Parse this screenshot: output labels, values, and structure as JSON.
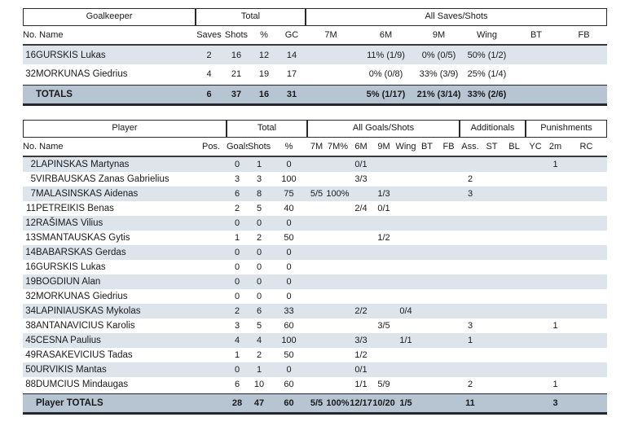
{
  "colors": {
    "stripe_row": "#dde4ec",
    "totals_row": "#b7c4d1",
    "border_dark": "#2a2a2a",
    "text": "#1a1a1a"
  },
  "goalkeeper_table": {
    "group_headers": [
      "Goalkeeper",
      "Total",
      "All Saves/Shots"
    ],
    "name_header": "No. Name",
    "columns": [
      "Saves",
      "Shots",
      "%",
      "GC",
      "7M",
      "6M",
      "9M",
      "Wing",
      "BT",
      "FB"
    ],
    "rows": [
      {
        "no": "16",
        "name": "GURSKIS Lukas",
        "values": [
          "2",
          "16",
          "12",
          "14",
          "",
          "11% (1/9)",
          "0% (0/5)",
          "50% (1/2)",
          "",
          ""
        ]
      },
      {
        "no": "32",
        "name": "MORKUNAS Giedrius",
        "values": [
          "4",
          "21",
          "19",
          "17",
          "",
          "0% (0/8)",
          "33% (3/9)",
          "25% (1/4)",
          "",
          ""
        ]
      }
    ],
    "totals": {
      "label": "TOTALS",
      "values": [
        "6",
        "37",
        "16",
        "31",
        "",
        "5% (1/17)",
        "21% (3/14)",
        "33% (2/6)",
        "",
        ""
      ]
    }
  },
  "player_table": {
    "group_headers": [
      "Player",
      "Total",
      "All Goals/Shots",
      "Additionals",
      "Punishments"
    ],
    "name_header": "No. Name",
    "columns": [
      "Pos.",
      "Goals",
      "Shots",
      "%",
      "7M",
      "7M%",
      "6M",
      "9M",
      "Wing",
      "BT",
      "FB",
      "Ass.",
      "ST",
      "BL",
      "YC",
      "2m",
      "RC"
    ],
    "rows": [
      {
        "no": "2",
        "name": "LAPINSKAS Martynas",
        "values": [
          "",
          "0",
          "1",
          "0",
          "",
          "",
          "0/1",
          "",
          "",
          "",
          "",
          "",
          "",
          "",
          "",
          "1",
          ""
        ]
      },
      {
        "no": "5",
        "name": "VIRBAUSKAS Zanas Gabrielius",
        "values": [
          "",
          "3",
          "3",
          "100",
          "",
          "",
          "3/3",
          "",
          "",
          "",
          "",
          "2",
          "",
          "",
          "",
          "",
          ""
        ]
      },
      {
        "no": "7",
        "name": "MALASINSKAS Aidenas",
        "values": [
          "",
          "6",
          "8",
          "75",
          "5/5",
          "100%",
          "",
          "1/3",
          "",
          "",
          "",
          "3",
          "",
          "",
          "",
          "",
          ""
        ]
      },
      {
        "no": "11",
        "name": "PETREIKIS Benas",
        "values": [
          "",
          "2",
          "5",
          "40",
          "",
          "",
          "2/4",
          "0/1",
          "",
          "",
          "",
          "",
          "",
          "",
          "",
          "",
          ""
        ]
      },
      {
        "no": "12",
        "name": "RAŠIMAS Vilius",
        "values": [
          "",
          "0",
          "0",
          "0",
          "",
          "",
          "",
          "",
          "",
          "",
          "",
          "",
          "",
          "",
          "",
          "",
          ""
        ]
      },
      {
        "no": "13",
        "name": "SMANTAUSKAS Gytis",
        "values": [
          "",
          "1",
          "2",
          "50",
          "",
          "",
          "",
          "1/2",
          "",
          "",
          "",
          "",
          "",
          "",
          "",
          "",
          ""
        ]
      },
      {
        "no": "14",
        "name": "BABARSKAS Gerdas",
        "values": [
          "",
          "0",
          "0",
          "0",
          "",
          "",
          "",
          "",
          "",
          "",
          "",
          "",
          "",
          "",
          "",
          "",
          ""
        ]
      },
      {
        "no": "16",
        "name": "GURSKIS Lukas",
        "values": [
          "",
          "0",
          "0",
          "0",
          "",
          "",
          "",
          "",
          "",
          "",
          "",
          "",
          "",
          "",
          "",
          "",
          ""
        ]
      },
      {
        "no": "19",
        "name": "BOGDIUN Alan",
        "values": [
          "",
          "0",
          "0",
          "0",
          "",
          "",
          "",
          "",
          "",
          "",
          "",
          "",
          "",
          "",
          "",
          "",
          ""
        ]
      },
      {
        "no": "32",
        "name": "MORKUNAS Giedrius",
        "values": [
          "",
          "0",
          "0",
          "0",
          "",
          "",
          "",
          "",
          "",
          "",
          "",
          "",
          "",
          "",
          "",
          "",
          ""
        ]
      },
      {
        "no": "34",
        "name": "LAPINIAUSKAS Mykolas",
        "values": [
          "",
          "2",
          "6",
          "33",
          "",
          "",
          "2/2",
          "",
          "0/4",
          "",
          "",
          "",
          "",
          "",
          "",
          "",
          ""
        ]
      },
      {
        "no": "38",
        "name": "ANTANAVICIUS Karolis",
        "values": [
          "",
          "3",
          "5",
          "60",
          "",
          "",
          "",
          "3/5",
          "",
          "",
          "",
          "3",
          "",
          "",
          "",
          "1",
          ""
        ]
      },
      {
        "no": "45",
        "name": "CESNA Paulius",
        "values": [
          "",
          "4",
          "4",
          "100",
          "",
          "",
          "3/3",
          "",
          "1/1",
          "",
          "",
          "1",
          "",
          "",
          "",
          "",
          ""
        ]
      },
      {
        "no": "49",
        "name": "RASAKEVICIUS Tadas",
        "values": [
          "",
          "1",
          "2",
          "50",
          "",
          "",
          "1/2",
          "",
          "",
          "",
          "",
          "",
          "",
          "",
          "",
          "",
          ""
        ]
      },
      {
        "no": "50",
        "name": "URVIKIS Mantas",
        "values": [
          "",
          "0",
          "1",
          "0",
          "",
          "",
          "0/1",
          "",
          "",
          "",
          "",
          "",
          "",
          "",
          "",
          "",
          ""
        ]
      },
      {
        "no": "88",
        "name": "DUMCIUS Mindaugas",
        "values": [
          "",
          "6",
          "10",
          "60",
          "",
          "",
          "1/1",
          "5/9",
          "",
          "",
          "",
          "2",
          "",
          "",
          "",
          "1",
          ""
        ]
      }
    ],
    "totals": {
      "label": "Player TOTALS",
      "values": [
        "",
        "28",
        "47",
        "60",
        "5/5",
        "100%",
        "12/17",
        "10/20",
        "1/5",
        "",
        "",
        "11",
        "",
        "",
        "",
        "3",
        ""
      ]
    }
  }
}
